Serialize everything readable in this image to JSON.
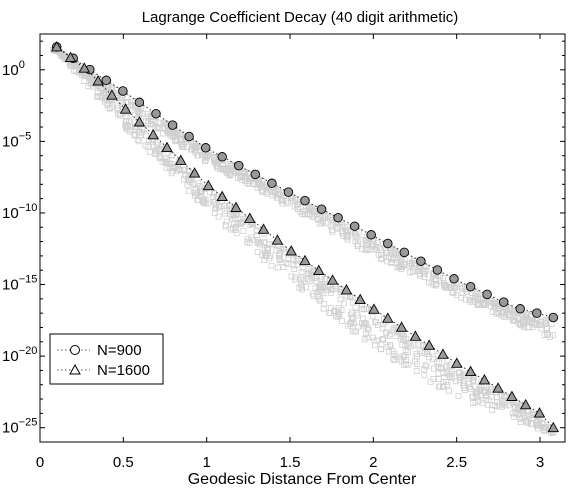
{
  "chart_data": {
    "type": "scatter",
    "title": "Lagrange Coefficient Decay (40 digit arithmetic)",
    "xlabel": "Geodesic Distance From Center",
    "ylabel": "",
    "xlim": [
      0,
      3.15
    ],
    "ylim_log10": [
      -26,
      2.5
    ],
    "y_scale": "log",
    "grid": false,
    "legend_position": "bottom-left",
    "x_ticks": [
      {
        "value": 0,
        "label": "0"
      },
      {
        "value": 0.5,
        "label": "0.5"
      },
      {
        "value": 1,
        "label": "1"
      },
      {
        "value": 1.5,
        "label": "1.5"
      },
      {
        "value": 2,
        "label": "2"
      },
      {
        "value": 2.5,
        "label": "2.5"
      },
      {
        "value": 3,
        "label": "3"
      }
    ],
    "y_ticks": [
      {
        "exp": 0,
        "base": "10",
        "sup": "0"
      },
      {
        "exp": -5,
        "base": "10",
        "sup": "−5"
      },
      {
        "exp": -10,
        "base": "10",
        "sup": "−10"
      },
      {
        "exp": -15,
        "base": "10",
        "sup": "−15"
      },
      {
        "exp": -20,
        "base": "10",
        "sup": "−20"
      },
      {
        "exp": -25,
        "base": "10",
        "sup": "−25"
      }
    ],
    "series": [
      {
        "name": "N=900",
        "marker": "circle",
        "fill": "#999999",
        "envelope_log10": [
          [
            0.1,
            1.6
          ],
          [
            0.3,
            0.0
          ],
          [
            0.5,
            -1.5
          ],
          [
            1.0,
            -5.5
          ],
          [
            1.5,
            -8.6
          ],
          [
            2.0,
            -11.6
          ],
          [
            2.5,
            -14.7
          ],
          [
            2.85,
            -16.6
          ],
          [
            3.08,
            -17.3
          ]
        ],
        "cloud_log10": [
          [
            0.1,
            1.6
          ],
          [
            0.5,
            -2.5
          ],
          [
            1.0,
            -6.3
          ],
          [
            1.5,
            -9.5
          ],
          [
            2.0,
            -12.8
          ],
          [
            2.5,
            -15.6
          ],
          [
            3.08,
            -18.7
          ]
        ]
      },
      {
        "name": "N=1600",
        "marker": "triangle",
        "fill": "#999999",
        "envelope_log10": [
          [
            0.1,
            1.6
          ],
          [
            0.3,
            -0.2
          ],
          [
            0.5,
            -2.6
          ],
          [
            1.0,
            -8.0
          ],
          [
            1.5,
            -12.6
          ],
          [
            2.0,
            -16.7
          ],
          [
            2.5,
            -20.5
          ],
          [
            3.0,
            -24.0
          ],
          [
            3.08,
            -25.0
          ]
        ],
        "cloud_log10": [
          [
            0.1,
            1.5
          ],
          [
            0.5,
            -3.7
          ],
          [
            1.0,
            -9.6
          ],
          [
            1.5,
            -14.7
          ],
          [
            2.0,
            -19.2
          ],
          [
            2.5,
            -22.7
          ],
          [
            3.08,
            -25.3
          ]
        ]
      }
    ],
    "cloud_color": "#d0d0d0"
  }
}
